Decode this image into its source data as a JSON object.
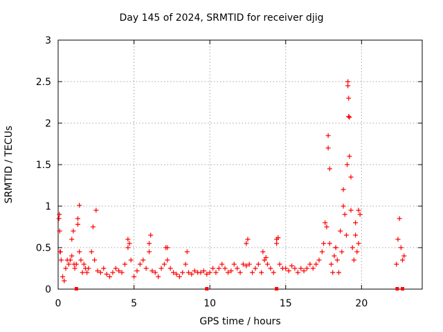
{
  "chart_data": {
    "type": "scatter",
    "title": "Day 145 of 2024, SRMTID for receiver djig",
    "xlabel": "GPS time / hours",
    "ylabel": "SRMTID / TECUs",
    "xlim": [
      0,
      24
    ],
    "ylim": [
      0,
      3
    ],
    "xticks": [
      0,
      5,
      10,
      15,
      20
    ],
    "xtick_labels": [
      "0",
      "5",
      "10",
      "15",
      "20"
    ],
    "yticks": [
      0,
      0.5,
      1,
      1.5,
      2,
      2.5,
      3
    ],
    "ytick_labels": [
      "0",
      "0.5",
      "1",
      "1.5",
      "2",
      "2.5",
      "3"
    ],
    "grid": true,
    "marker": "+",
    "color": "#ff0000",
    "series": [
      {
        "name": "SRMTID",
        "x": [
          0.05,
          0.1,
          0.15,
          0.2,
          0.3,
          0.4,
          0.5,
          0.6,
          0.7,
          0.8,
          0.9,
          1.0,
          1.1,
          1.2,
          1.3,
          1.4,
          1.5,
          1.6,
          1.7,
          1.8,
          1.9,
          2.0,
          2.2,
          2.4,
          2.6,
          2.8,
          3.0,
          3.2,
          3.4,
          3.6,
          3.8,
          4.0,
          4.2,
          4.4,
          4.6,
          4.8,
          5.0,
          5.2,
          5.4,
          5.6,
          5.8,
          6.0,
          6.2,
          6.4,
          6.6,
          6.8,
          7.0,
          7.2,
          7.4,
          7.6,
          7.8,
          8.0,
          8.2,
          8.4,
          8.6,
          8.8,
          9.0,
          9.2,
          9.4,
          9.6,
          9.8,
          10.0,
          10.2,
          10.4,
          10.6,
          10.8,
          11.0,
          11.2,
          11.4,
          11.6,
          11.8,
          12.0,
          12.2,
          12.4,
          12.6,
          12.8,
          13.0,
          13.2,
          13.4,
          13.6,
          13.8,
          14.0,
          14.2,
          14.4,
          14.6,
          14.8,
          15.0,
          15.2,
          15.4,
          15.6,
          15.8,
          16.0,
          16.2,
          16.4,
          16.6,
          16.8,
          17.0,
          17.2,
          17.4,
          17.5,
          17.6,
          17.7,
          17.8,
          17.9,
          18.0,
          18.1,
          18.2,
          18.3,
          18.4,
          18.5,
          18.6,
          18.7,
          18.8,
          18.9,
          19.0,
          19.05,
          19.1,
          19.15,
          19.2,
          19.3,
          19.4,
          19.5,
          19.6,
          19.7,
          19.8,
          19.9,
          22.3,
          22.4,
          22.5,
          22.6,
          22.7,
          22.8,
          0.08,
          0.12,
          0.9,
          1.05,
          1.3,
          1.4,
          2.3,
          2.5,
          4.6,
          4.7,
          6.0,
          6.1,
          7.1,
          7.2,
          8.5,
          12.4,
          12.5,
          13.5,
          13.7,
          14.4,
          14.5,
          17.8,
          17.9,
          18.3,
          18.8,
          19.1,
          19.15,
          19.2,
          19.3,
          19.6,
          19.8
        ],
        "y": [
          0.85,
          0.7,
          0.45,
          0.35,
          0.15,
          0.1,
          0.25,
          0.35,
          0.3,
          0.35,
          0.4,
          0.7,
          0.25,
          0.3,
          0.85,
          0.45,
          0.35,
          0.2,
          0.3,
          0.25,
          0.2,
          0.25,
          0.45,
          0.35,
          0.22,
          0.2,
          0.25,
          0.18,
          0.15,
          0.2,
          0.25,
          0.22,
          0.2,
          0.3,
          0.6,
          0.35,
          0.15,
          0.22,
          0.3,
          0.35,
          0.25,
          0.45,
          0.22,
          0.2,
          0.15,
          0.25,
          0.3,
          0.35,
          0.25,
          0.2,
          0.18,
          0.15,
          0.2,
          0.3,
          0.2,
          0.18,
          0.22,
          0.2,
          0.2,
          0.22,
          0.18,
          0.2,
          0.25,
          0.2,
          0.25,
          0.3,
          0.25,
          0.2,
          0.22,
          0.3,
          0.25,
          0.2,
          0.3,
          0.55,
          0.3,
          0.2,
          0.25,
          0.3,
          0.2,
          0.35,
          0.3,
          0.25,
          0.2,
          0.55,
          0.3,
          0.25,
          0.25,
          0.22,
          0.28,
          0.25,
          0.2,
          0.25,
          0.22,
          0.25,
          0.3,
          0.25,
          0.3,
          0.35,
          0.45,
          0.55,
          0.8,
          0.75,
          1.7,
          0.55,
          0.3,
          0.2,
          0.4,
          0.5,
          0.35,
          0.2,
          0.7,
          0.45,
          1.0,
          0.9,
          0.65,
          1.5,
          2.5,
          2.3,
          2.07,
          1.35,
          0.5,
          0.35,
          0.8,
          0.45,
          0.55,
          0.9,
          0.3,
          0.6,
          0.85,
          0.5,
          0.35,
          0.4,
          0.9,
          0.45,
          0.6,
          0.3,
          0.78,
          1.01,
          0.75,
          0.95,
          0.5,
          0.55,
          0.55,
          0.65,
          0.5,
          0.5,
          0.45,
          0.28,
          0.6,
          0.45,
          0.38,
          0.6,
          0.62,
          1.85,
          1.45,
          0.5,
          1.2,
          2.45,
          2.08,
          1.6,
          0.95,
          0.65,
          0.95
        ],
        "zero_markers_x": [
          1.2,
          9.8,
          14.4,
          22.35,
          22.7
        ]
      }
    ]
  }
}
